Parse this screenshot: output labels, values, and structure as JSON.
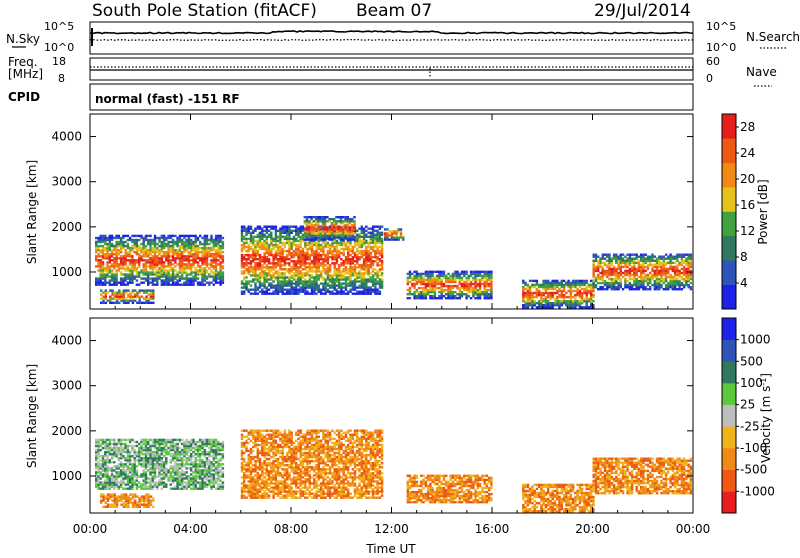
{
  "header": {
    "station": "South Pole Station (fitACF)",
    "beam": "Beam 07",
    "date": "29/Jul/2014"
  },
  "nsky_panel": {
    "left_label": "N.Sky",
    "right_label": "N.Search",
    "left_ticks": [
      "10^5",
      "10^0"
    ],
    "right_ticks": [
      "10^5",
      "10^0"
    ]
  },
  "freq_panel": {
    "left_label_1": "Freq.",
    "left_label_2": "[MHz]",
    "left_ticks": [
      "18",
      "8"
    ],
    "right_label": "Nave",
    "right_ticks": [
      "60",
      "0"
    ]
  },
  "cpid": {
    "label": "CPID",
    "text": "normal (fast) -151 RF"
  },
  "colors": {
    "power_scale": [
      "#1e22e6",
      "#2f53b8",
      "#2f7a5e",
      "#3fa23f",
      "#e6c21a",
      "#f08a14",
      "#ee5a14",
      "#e81e1e"
    ],
    "velocity_scale": [
      "#e81e1e",
      "#ee5a14",
      "#f08a14",
      "#f0b41a",
      "#bebebe",
      "#5cc83c",
      "#2f7a5e",
      "#2f53b8",
      "#1e22e6"
    ]
  },
  "chart_data": [
    {
      "type": "heatmap",
      "name": "power",
      "ylabel": "Slant Range [km]",
      "yticks": [
        "1000",
        "2000",
        "3000",
        "4000"
      ],
      "ylim": [
        180,
        4500
      ],
      "xticks": [
        "00:00",
        "04:00",
        "08:00",
        "12:00",
        "16:00",
        "20:00",
        "00:00"
      ],
      "xlim_hours": [
        0,
        24
      ],
      "colorbar": {
        "label": "Power [dB]",
        "ticks": [
          "4",
          "8",
          "12",
          "16",
          "20",
          "24",
          "28"
        ],
        "range": [
          0,
          30
        ]
      },
      "echo_regions": [
        {
          "t0": 0.2,
          "t1": 5.3,
          "r0": 700,
          "r1": 1800
        },
        {
          "t0": 0.4,
          "t1": 2.5,
          "r0": 300,
          "r1": 600
        },
        {
          "t0": 6.0,
          "t1": 11.6,
          "r0": 500,
          "r1": 2000
        },
        {
          "t0": 8.5,
          "t1": 10.5,
          "r0": 1700,
          "r1": 2200
        },
        {
          "t0": 11.7,
          "t1": 12.5,
          "r0": 1700,
          "r1": 1950
        },
        {
          "t0": 12.6,
          "t1": 16.0,
          "r0": 400,
          "r1": 1000
        },
        {
          "t0": 17.2,
          "t1": 20.0,
          "r0": 200,
          "r1": 800
        },
        {
          "t0": 20.0,
          "t1": 23.9,
          "r0": 600,
          "r1": 1400
        }
      ]
    },
    {
      "type": "heatmap",
      "name": "velocity",
      "ylabel": "Slant Range [km]",
      "yticks": [
        "1000",
        "2000",
        "3000",
        "4000"
      ],
      "ylim": [
        180,
        4500
      ],
      "xticks": [
        "00:00",
        "04:00",
        "08:00",
        "12:00",
        "16:00",
        "20:00",
        "00:00"
      ],
      "xlim_hours": [
        0,
        24
      ],
      "xlabel": "Time UT",
      "colorbar": {
        "label": "Velocity [m s",
        "label_exp": "-1",
        "label_end": "]",
        "ticks": [
          "1000",
          "500",
          "100",
          "25",
          "-25",
          "-100",
          "-500",
          "-1000"
        ],
        "range": [
          -1000,
          1000
        ]
      },
      "echo_regions": [
        {
          "t0": 0.2,
          "t1": 5.3,
          "r0": 700,
          "r1": 1800
        },
        {
          "t0": 0.4,
          "t1": 2.5,
          "r0": 300,
          "r1": 600
        },
        {
          "t0": 6.0,
          "t1": 11.6,
          "r0": 500,
          "r1": 2000
        },
        {
          "t0": 12.6,
          "t1": 16.0,
          "r0": 400,
          "r1": 1000
        },
        {
          "t0": 17.2,
          "t1": 20.0,
          "r0": 200,
          "r1": 800
        },
        {
          "t0": 20.0,
          "t1": 23.9,
          "r0": 600,
          "r1": 1400
        }
      ]
    }
  ]
}
